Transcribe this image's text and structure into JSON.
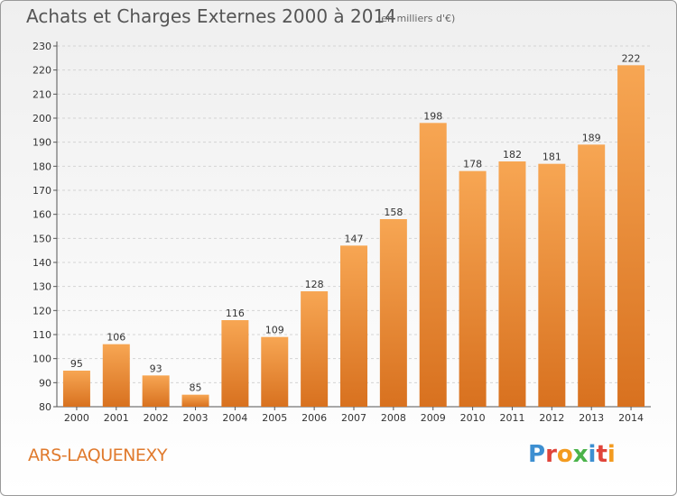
{
  "header": {
    "title": "Achats et Charges Externes 2000 à 2014",
    "subtitle": "(en milliers d'€)"
  },
  "footer": {
    "commune": "ARS-LAQUENEXY",
    "logo": "Proxiti"
  },
  "colors": {
    "bar_light": "#f7a653",
    "bar_dark": "#d8711f",
    "commune_text": "#e07a2d",
    "logo_letters": [
      "#3d8fd1",
      "#e0443a",
      "#f39b1f",
      "#4bb34a",
      "#3d8fd1",
      "#e0443a",
      "#f39b1f"
    ]
  },
  "chart_data": {
    "type": "bar",
    "title": "Achats et Charges Externes 2000 à 2014",
    "subtitle": "(en milliers d'€)",
    "categories": [
      "2000",
      "2001",
      "2002",
      "2003",
      "2004",
      "2005",
      "2006",
      "2007",
      "2008",
      "2009",
      "2010",
      "2011",
      "2012",
      "2013",
      "2014"
    ],
    "values": [
      95,
      106,
      93,
      85,
      116,
      109,
      128,
      147,
      158,
      198,
      178,
      182,
      181,
      189,
      222
    ],
    "ylim": [
      80,
      230
    ],
    "yticks": [
      80,
      90,
      100,
      110,
      120,
      130,
      140,
      150,
      160,
      170,
      180,
      190,
      200,
      210,
      220,
      230
    ],
    "grid": true,
    "legend": "none"
  }
}
